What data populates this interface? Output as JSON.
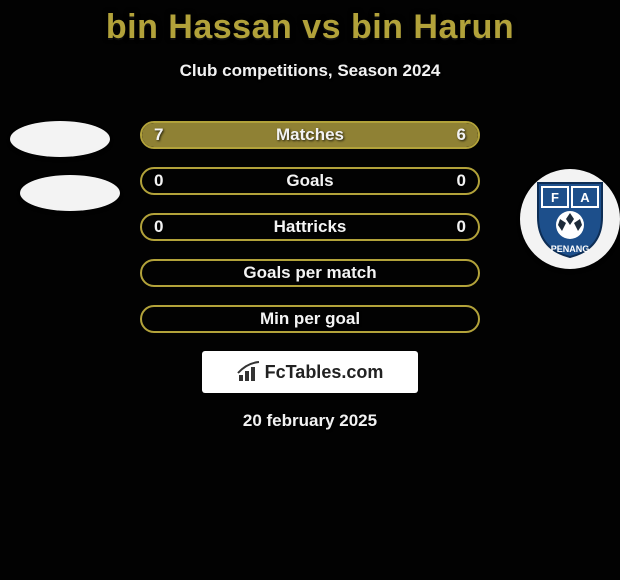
{
  "title": "bin Hassan vs bin Harun",
  "subtitle": "Club competitions, Season 2024",
  "date_text": "20 february 2025",
  "branding_text": "FcTables.com",
  "colors": {
    "accent": "#b2a23a",
    "bg": "#020202",
    "text": "#f2f2f2",
    "bar_fill": "#8f8134"
  },
  "rows": [
    {
      "label": "Matches",
      "left_value": "7",
      "right_value": "6",
      "left_pct": 54,
      "right_pct": 46,
      "fill_left_color": "#8f8134",
      "fill_right_color": "#8f8134"
    },
    {
      "label": "Goals",
      "left_value": "0",
      "right_value": "0",
      "left_pct": 0,
      "right_pct": 0,
      "fill_left_color": "#8f8134",
      "fill_right_color": "#8f8134"
    },
    {
      "label": "Hattricks",
      "left_value": "0",
      "right_value": "0",
      "left_pct": 0,
      "right_pct": 0,
      "fill_left_color": "#8f8134",
      "fill_right_color": "#8f8134"
    },
    {
      "label": "Goals per match",
      "left_value": "",
      "right_value": "",
      "left_pct": 0,
      "right_pct": 0,
      "fill_left_color": "#8f8134",
      "fill_right_color": "#8f8134"
    },
    {
      "label": "Min per goal",
      "left_value": "",
      "right_value": "",
      "left_pct": 0,
      "right_pct": 0,
      "fill_left_color": "#8f8134",
      "fill_right_color": "#8f8134"
    }
  ],
  "right_badge": {
    "line1": "F A",
    "line2": "PENANG",
    "fill": "#1d4f8b",
    "text_color": "#ffffff"
  }
}
